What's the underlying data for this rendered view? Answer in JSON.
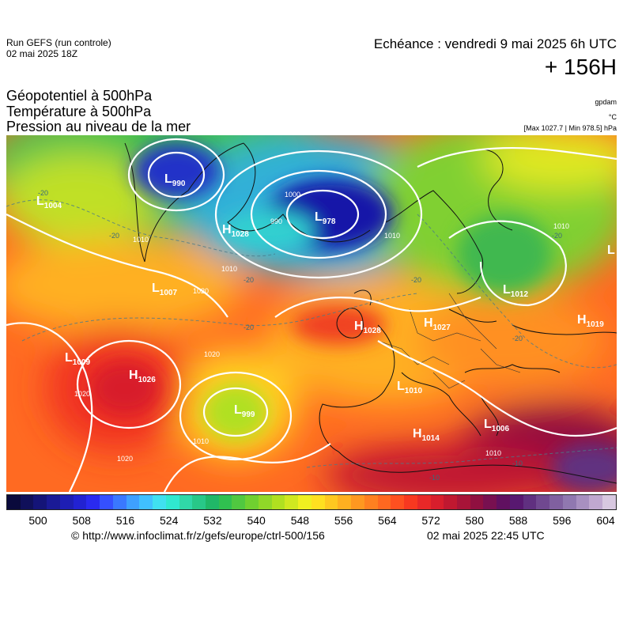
{
  "header": {
    "run_title": "Run GEFS (run controle)",
    "run_date": "02 mai 2025 18Z",
    "echeance": "Echéance : vendredi 9 mai 2025 6h UTC",
    "lead_time": "+ 156H",
    "field1": "Géopotentiel à 500hPa",
    "field2": "Température à 500hPa",
    "field3": "Pression au niveau de la mer",
    "unit_gpdam": "gpdam",
    "unit_celsius": "°C",
    "pressure_range": "[Max 1027.7 | Min 978.5] hPa"
  },
  "map": {
    "pressure_centers": [
      {
        "type": "L",
        "value": "1004"
      },
      {
        "type": "L",
        "value": "990"
      },
      {
        "type": "H",
        "value": "1028"
      },
      {
        "type": "L",
        "value": "978"
      },
      {
        "type": "L",
        "value": "1007"
      },
      {
        "type": "H",
        "value": "1028"
      },
      {
        "type": "H",
        "value": "1027"
      },
      {
        "type": "L",
        "value": "1012"
      },
      {
        "type": "H",
        "value": "1019"
      },
      {
        "type": "L",
        "value": "1009"
      },
      {
        "type": "H",
        "value": "1026"
      },
      {
        "type": "L",
        "value": "999"
      },
      {
        "type": "L",
        "value": "1010"
      },
      {
        "type": "H",
        "value": "1014"
      },
      {
        "type": "L",
        "value": "1006"
      },
      {
        "type": "L",
        "value": ""
      }
    ],
    "isobar_labels": [
      "1010",
      "1010",
      "1000",
      "990",
      "1010",
      "1020",
      "1020",
      "1020",
      "1020",
      "1010",
      "1010",
      "1010"
    ],
    "temperature_labels": [
      "-20",
      "-20",
      "-20",
      "-20",
      "-20",
      "-20",
      "-20",
      "-10",
      "-10"
    ]
  },
  "scale": {
    "colors": [
      "#0a0a3c",
      "#10105a",
      "#141478",
      "#1a1a96",
      "#1e1eb4",
      "#2222d2",
      "#2a2af0",
      "#3550ff",
      "#3a78ff",
      "#3ea0ff",
      "#40c0ff",
      "#40e0f0",
      "#30e8d0",
      "#30d8a8",
      "#28c888",
      "#20b868",
      "#30c050",
      "#50c840",
      "#70d030",
      "#90d828",
      "#b0e020",
      "#d0e820",
      "#f0f020",
      "#ffe020",
      "#ffc820",
      "#ffb020",
      "#ff9820",
      "#ff8020",
      "#ff6820",
      "#ff5020",
      "#f83820",
      "#e82828",
      "#d81e2c",
      "#c01830",
      "#a81438",
      "#901040",
      "#781050",
      "#601060",
      "#581870",
      "#603080",
      "#704890",
      "#8060a0",
      "#9078b0",
      "#a890c0",
      "#c0a8d0",
      "#d8c8e0"
    ],
    "ticks": [
      "500",
      "508",
      "516",
      "524",
      "532",
      "540",
      "548",
      "556",
      "564",
      "572",
      "580",
      "588",
      "596",
      "604"
    ]
  },
  "footer": {
    "url": "© http://www.infoclimat.fr/z/gefs/europe/ctrl-500/156",
    "generated": "02 mai 2025 22:45 UTC"
  }
}
